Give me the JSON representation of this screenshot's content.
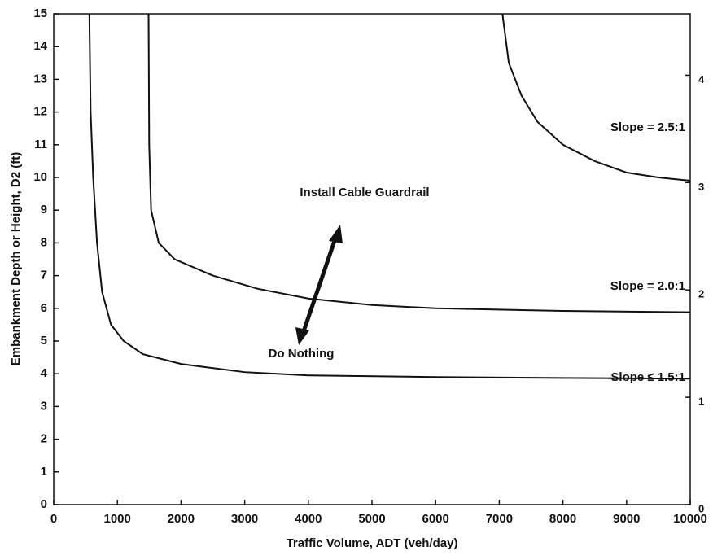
{
  "chart_data": {
    "type": "line",
    "xlabel": "Traffic Volume, ADT (veh/day)",
    "ylabel": "Embankment Depth or Height, D2 (ft)",
    "xlim": [
      0,
      10000
    ],
    "xticks": [
      0,
      1000,
      2000,
      3000,
      4000,
      5000,
      6000,
      7000,
      8000,
      9000,
      10000
    ],
    "ylim": [
      0,
      15
    ],
    "yticks": [
      0,
      1,
      2,
      3,
      4,
      5,
      6,
      7,
      8,
      9,
      10,
      11,
      12,
      13,
      14,
      15
    ],
    "y2lim": [
      0,
      4.572
    ],
    "y2ticks": [
      0,
      1,
      2,
      3,
      4
    ],
    "annotations": [
      "Install Cable Guardrail",
      "Do Nothing"
    ],
    "series": [
      {
        "name": "Slope = 2.5:1",
        "color": "#111111",
        "x": [
          7050,
          7150,
          7350,
          7600,
          8000,
          8500,
          9000,
          9500,
          10000
        ],
        "values": [
          15,
          13.5,
          12.5,
          11.7,
          11,
          10.5,
          10.15,
          10,
          9.9
        ]
      },
      {
        "name": "Slope = 2.0:1",
        "color": "#111111",
        "x": [
          1490,
          1500,
          1530,
          1650,
          1900,
          2500,
          3200,
          4000,
          5000,
          6000,
          8000,
          10000
        ],
        "values": [
          15,
          11,
          9,
          8,
          7.5,
          7,
          6.6,
          6.3,
          6.1,
          6.0,
          5.92,
          5.88
        ]
      },
      {
        "name": "Slope ≤ 1.5:1",
        "color": "#111111",
        "x": [
          560,
          580,
          620,
          680,
          760,
          900,
          1100,
          1400,
          2000,
          3000,
          4000,
          6000,
          8000,
          10000
        ],
        "values": [
          15,
          12,
          10,
          8,
          6.5,
          5.5,
          5,
          4.6,
          4.3,
          4.05,
          3.95,
          3.9,
          3.87,
          3.85
        ]
      }
    ]
  }
}
